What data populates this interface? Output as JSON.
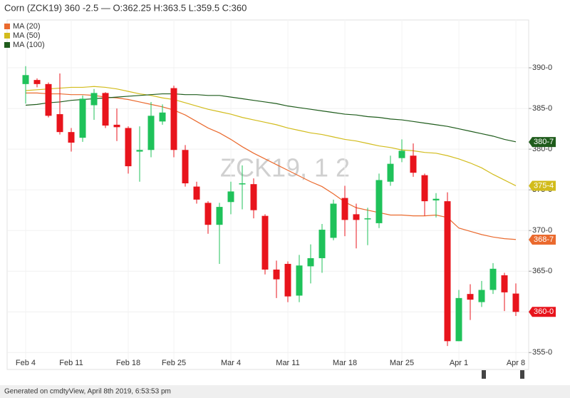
{
  "chart_data": {
    "type": "candlestick",
    "title": "Corn (ZCK19) 360 -2.5 — O:362.25 H:363.5 L:359.5 C:360",
    "watermark": "ZCK19, 1 2",
    "footer": "Generated on cmdtyView, April 8th 2019, 6:53:53 pm",
    "categories": [
      "Feb 4",
      null,
      null,
      null,
      "Feb 11",
      null,
      null,
      null,
      null,
      "Feb 18",
      null,
      null,
      null,
      "Feb 25",
      null,
      null,
      null,
      null,
      "Mar 4",
      null,
      null,
      null,
      null,
      "Mar 11",
      null,
      null,
      null,
      null,
      "Mar 18",
      null,
      null,
      null,
      null,
      "Mar 25",
      null,
      null,
      null,
      null,
      "Apr 1",
      null,
      null,
      null,
      null,
      "Apr 8"
    ],
    "open": [
      388.0,
      388.5,
      388.0,
      384.3,
      382.1,
      381.4,
      385.4,
      386.9,
      383.0,
      382.6,
      379.7,
      379.9,
      383.4,
      387.5,
      379.9,
      375.4,
      373.4,
      370.7,
      373.5,
      375.7,
      375.7,
      371.8,
      365.2,
      365.9,
      362.0,
      365.6,
      366.6,
      369.1,
      374.0,
      372.0,
      371.4,
      370.9,
      376.0,
      378.9,
      379.2,
      376.8,
      373.7,
      373.6,
      356.4,
      362.2,
      361.2,
      362.7,
      364.5,
      362.25
    ],
    "high": [
      390.2,
      388.7,
      388.2,
      389.3,
      382.6,
      386.6,
      387.4,
      387.0,
      385.0,
      382.8,
      382.8,
      385.8,
      385.5,
      387.8,
      380.5,
      376.0,
      373.6,
      373.4,
      376.0,
      378.0,
      376.4,
      372.0,
      366.3,
      366.2,
      367.0,
      368.3,
      370.8,
      373.8,
      375.5,
      373.3,
      372.8,
      377.0,
      379.2,
      381.2,
      380.7,
      377.0,
      374.6,
      374.7,
      362.7,
      363.4,
      363.8,
      366.0,
      364.8,
      363.5
    ],
    "low": [
      385.6,
      387.6,
      383.9,
      381.8,
      379.7,
      380.9,
      383.6,
      382.6,
      381.0,
      377.0,
      376.0,
      379.0,
      383.0,
      379.0,
      375.4,
      373.3,
      369.6,
      365.9,
      372.0,
      372.6,
      371.5,
      364.6,
      361.7,
      361.2,
      361.2,
      363.5,
      364.8,
      368.8,
      369.3,
      367.8,
      368.2,
      370.3,
      375.5,
      378.4,
      376.6,
      371.8,
      371.6,
      355.8,
      356.4,
      359.0,
      360.6,
      362.2,
      360.1,
      359.5
    ],
    "close": [
      389.1,
      388.0,
      384.1,
      382.1,
      380.8,
      386.2,
      386.9,
      382.9,
      382.7,
      377.9,
      379.9,
      384.1,
      384.5,
      379.9,
      375.8,
      373.8,
      370.7,
      372.9,
      374.8,
      375.8,
      372.5,
      365.2,
      364.0,
      361.9,
      365.7,
      366.6,
      370.1,
      373.3,
      371.3,
      371.3,
      371.5,
      376.2,
      378.2,
      379.8,
      377.1,
      373.6,
      373.9,
      356.4,
      361.7,
      361.5,
      362.7,
      365.3,
      362.4,
      360
    ],
    "up_color": "#1fc25a",
    "down_color": "#e8141c",
    "series": [
      {
        "name": "MA (20)",
        "color": "#ea6a2e",
        "values": [
          386.9,
          386.9,
          386.8,
          386.8,
          386.7,
          386.7,
          386.6,
          386.4,
          386.3,
          386.1,
          385.8,
          385.5,
          385.2,
          384.8,
          384.2,
          383.4,
          382.6,
          382.0,
          381.2,
          380.3,
          379.5,
          378.8,
          378.1,
          377.4,
          376.7,
          376.0,
          375.4,
          374.5,
          373.5,
          372.8,
          372.5,
          372.2,
          371.9,
          371.9,
          371.8,
          371.8,
          371.9,
          371.6,
          370.3,
          369.9,
          369.5,
          369.2,
          369.0,
          368.9
        ]
      },
      {
        "name": "MA (50)",
        "color": "#d2bc1c",
        "values": [
          387.2,
          387.3,
          387.4,
          387.5,
          387.6,
          387.6,
          387.7,
          387.6,
          387.4,
          387.1,
          386.8,
          386.6,
          386.3,
          386.1,
          385.7,
          385.3,
          384.9,
          384.6,
          384.3,
          383.9,
          383.6,
          383.3,
          383.0,
          382.6,
          382.3,
          382.0,
          381.8,
          381.5,
          381.2,
          381.0,
          380.7,
          380.4,
          380.2,
          379.9,
          379.8,
          379.6,
          379.5,
          379.2,
          378.8,
          378.3,
          377.7,
          376.9,
          376.2,
          375.5
        ]
      },
      {
        "name": "MA (100)",
        "color": "#1f5c1c",
        "values": [
          385.4,
          385.5,
          385.7,
          385.8,
          386.0,
          386.1,
          386.2,
          386.3,
          386.4,
          386.5,
          386.6,
          386.7,
          386.8,
          386.8,
          386.7,
          386.7,
          386.6,
          386.6,
          386.4,
          386.2,
          386.0,
          385.8,
          385.6,
          385.3,
          385.1,
          384.9,
          384.7,
          384.5,
          384.3,
          384.2,
          384.0,
          383.9,
          383.7,
          383.6,
          383.4,
          383.2,
          383.0,
          382.8,
          382.5,
          382.2,
          381.9,
          381.6,
          381.2,
          380.9
        ]
      }
    ],
    "price_tags": [
      {
        "value": 380.875,
        "label": "380-7",
        "color": "#1f5c1c"
      },
      {
        "value": 375.5,
        "label": "375-4",
        "color": "#d2bc1c"
      },
      {
        "value": 368.875,
        "label": "368-7",
        "color": "#ea6a2e"
      },
      {
        "value": 360,
        "label": "360-0",
        "color": "#e8141c"
      }
    ],
    "ylim": [
      354.5,
      395
    ],
    "yticks": [
      {
        "value": 355,
        "label": "355-0"
      },
      {
        "value": 360,
        "label": "360-0"
      },
      {
        "value": 365,
        "label": "365-0"
      },
      {
        "value": 370,
        "label": "370-0"
      },
      {
        "value": 375,
        "label": "375-0"
      },
      {
        "value": 380,
        "label": "380-0"
      },
      {
        "value": 385,
        "label": "385-0"
      },
      {
        "value": 390,
        "label": "390-0"
      }
    ],
    "grid": true
  }
}
